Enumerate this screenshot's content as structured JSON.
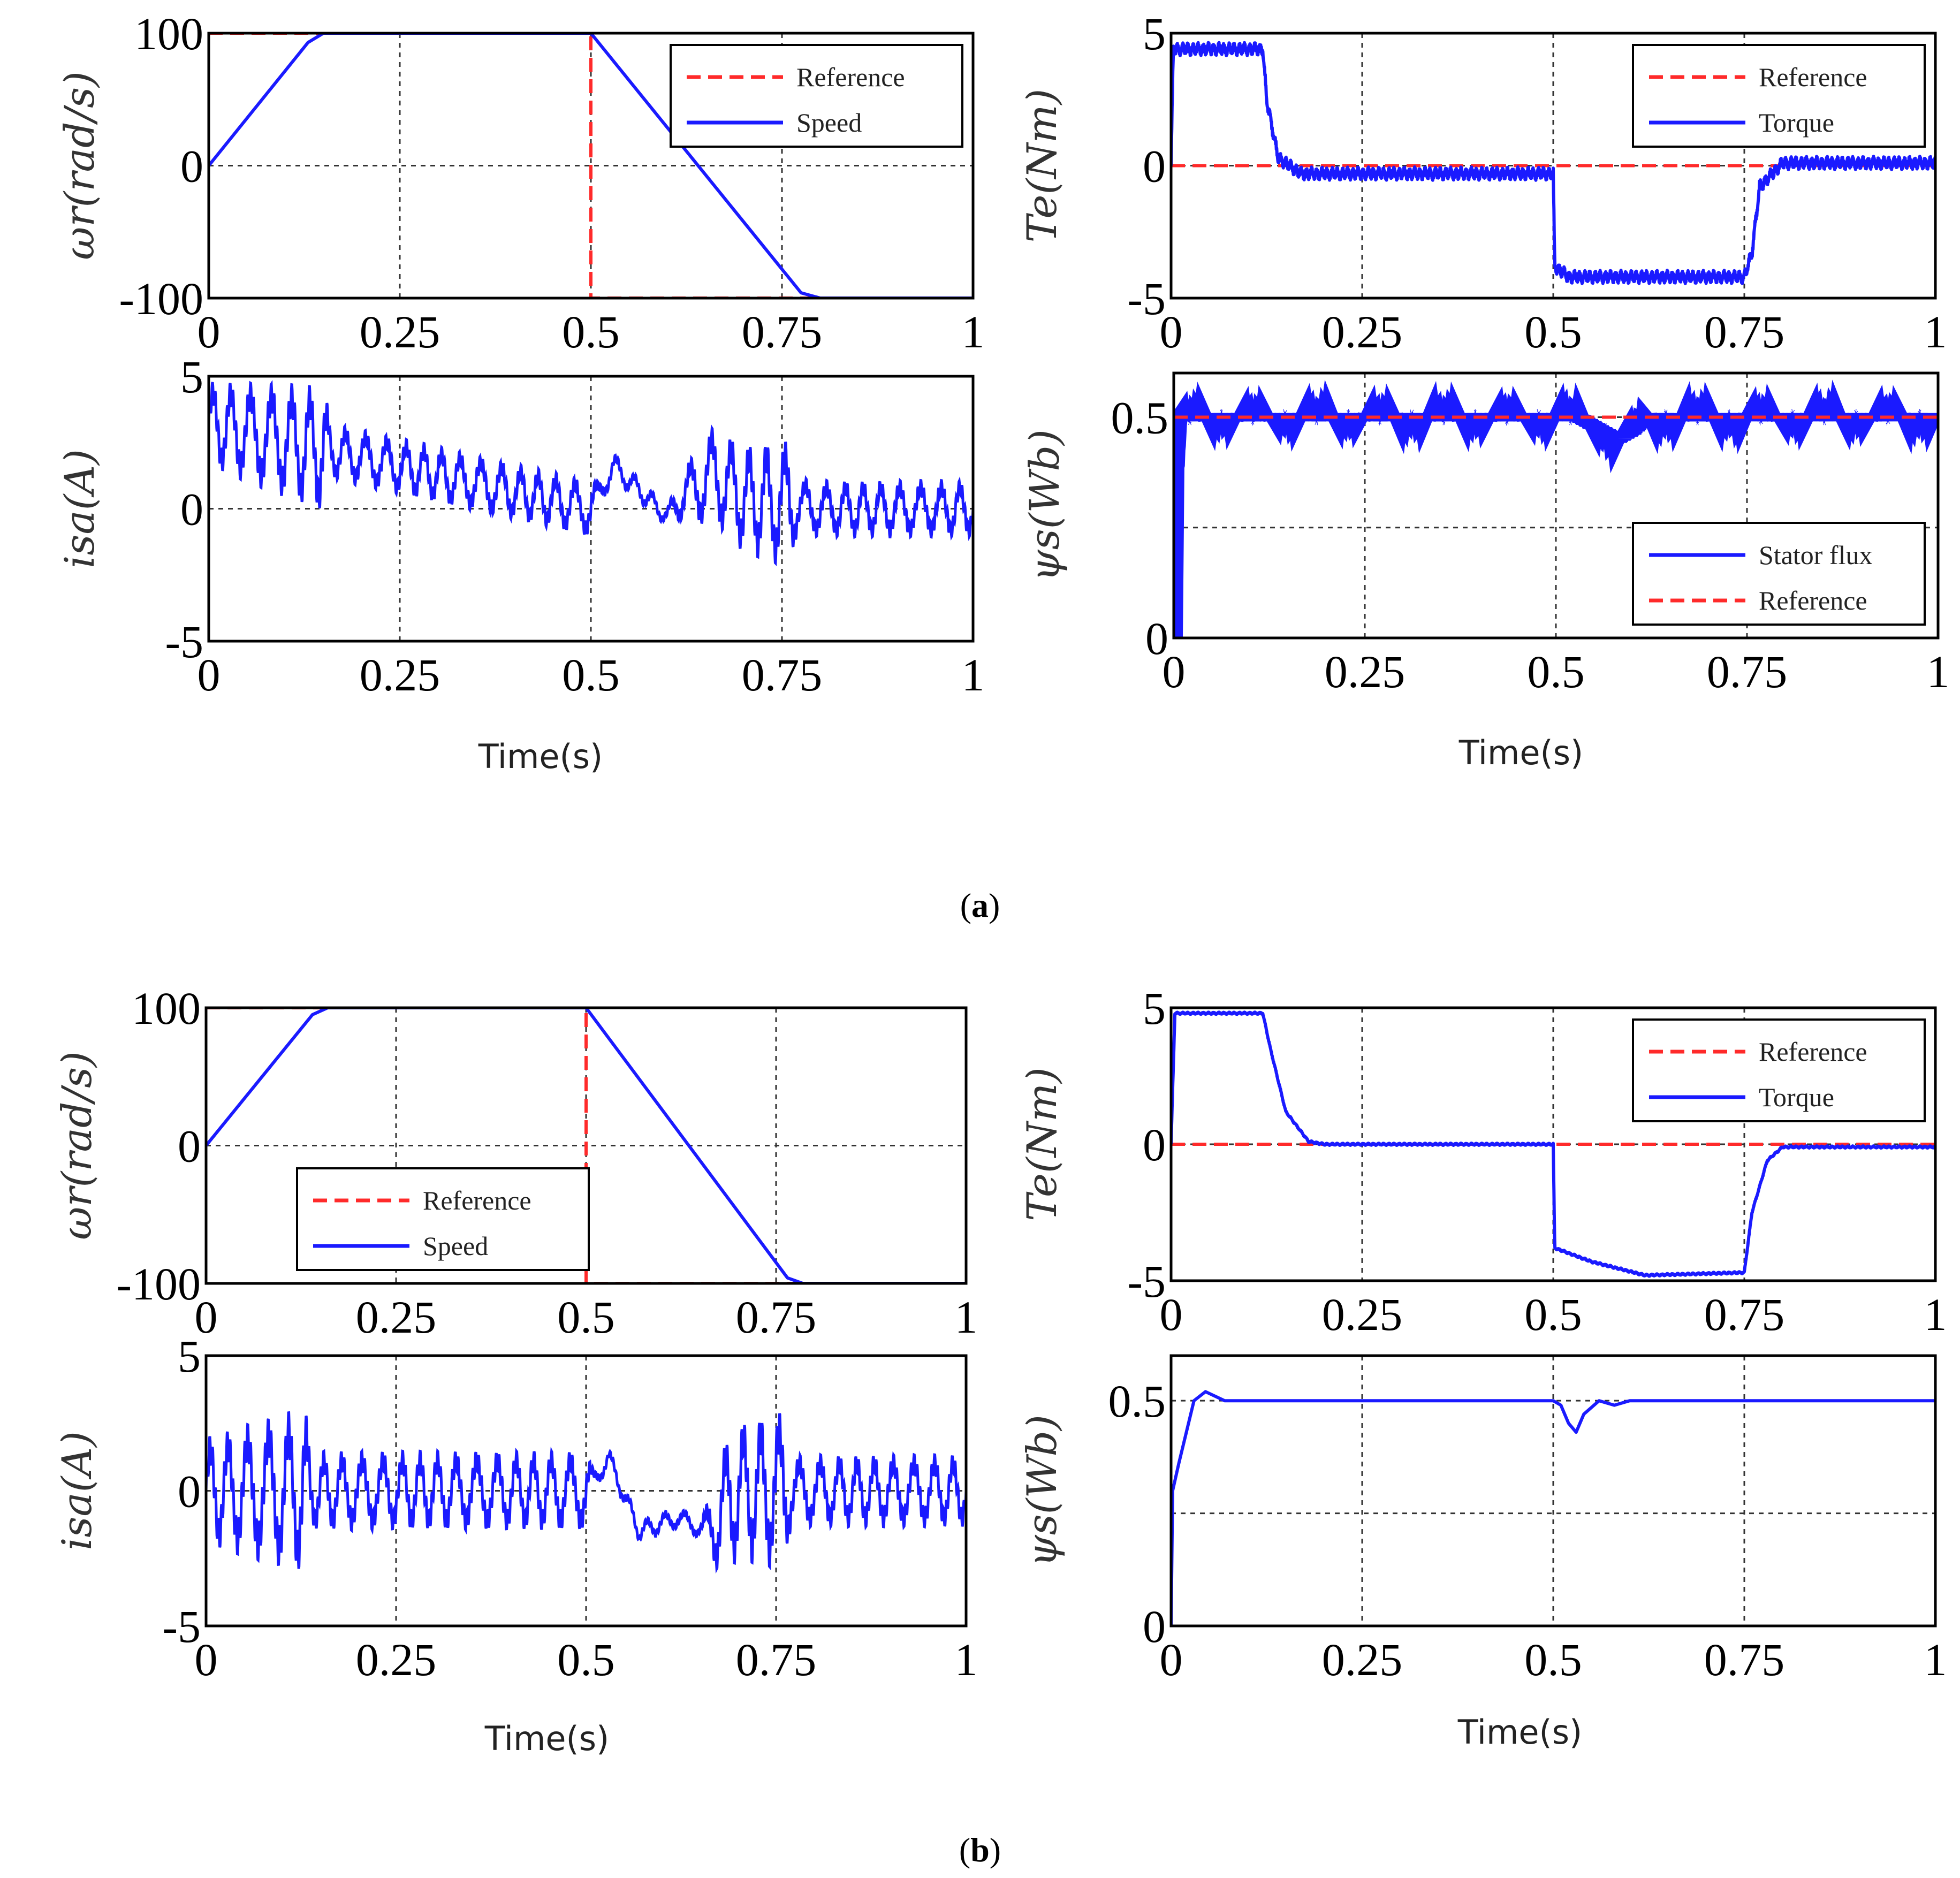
{
  "figure": {
    "x_label": "Time(s)",
    "captions": {
      "a": {
        "open": "(",
        "letter": "a",
        "close": ")"
      },
      "b": {
        "open": "(",
        "letter": "b",
        "close": ")"
      }
    }
  },
  "colors": {
    "reference": "#ff2a2a",
    "signal": "#1a1aff",
    "grid": "#333333",
    "axis": "#000000"
  },
  "chart_data": [
    {
      "id": "a-speed",
      "group": "a",
      "type": "line",
      "ylabel_text": "ωr(rad/s)",
      "xlim": [
        0,
        1
      ],
      "ylim": [
        -100,
        100
      ],
      "xticks": [
        0,
        0.25,
        0.5,
        0.75,
        1
      ],
      "xtick_labels": [
        "0",
        "0.25",
        "0.5",
        "0.75",
        "1"
      ],
      "yticks": [
        -100,
        0,
        100
      ],
      "ytick_labels": [
        "-100",
        "0",
        "100"
      ],
      "legend": {
        "position": "top-right",
        "entries": [
          "Reference",
          "Speed"
        ]
      },
      "series": [
        {
          "name": "Reference",
          "style": "dashed",
          "x": [
            0,
            0.5,
            0.5,
            1
          ],
          "y": [
            100,
            100,
            -100,
            -100
          ]
        },
        {
          "name": "Speed",
          "style": "solid",
          "x": [
            0,
            0.13,
            0.15,
            0.5,
            0.775,
            0.8,
            1
          ],
          "y": [
            0,
            93,
            100,
            100,
            -96,
            -100,
            -100
          ]
        }
      ]
    },
    {
      "id": "a-torque",
      "group": "a",
      "type": "line",
      "ylabel_text": "Te(Nm)",
      "xlim": [
        0,
        1
      ],
      "ylim": [
        -5,
        5
      ],
      "xticks": [
        0,
        0.25,
        0.5,
        0.75,
        1
      ],
      "xtick_labels": [
        "0",
        "0.25",
        "0.5",
        "0.75",
        "1"
      ],
      "yticks": [
        -5,
        0,
        5
      ],
      "ytick_labels": [
        "-5",
        "0",
        "5"
      ],
      "legend": {
        "position": "top-right",
        "entries": [
          "Reference",
          "Torque"
        ]
      },
      "series": [
        {
          "name": "Reference",
          "style": "dashed",
          "x": [
            0,
            1
          ],
          "y": [
            0,
            0
          ]
        },
        {
          "name": "Torque",
          "style": "solid",
          "noise": 0.25,
          "x": [
            0,
            0.003,
            0.12,
            0.125,
            0.14,
            0.17,
            0.5,
            0.502,
            0.52,
            0.75,
            0.76,
            0.77,
            0.8,
            1
          ],
          "y": [
            0,
            4.4,
            4.4,
            2.5,
            0.3,
            -0.3,
            -0.3,
            -3.8,
            -4.2,
            -4.2,
            -3.3,
            -0.8,
            0.1,
            0.1
          ]
        }
      ]
    },
    {
      "id": "a-current",
      "group": "a",
      "type": "line",
      "ylabel_text": "isa(A)",
      "xlim": [
        0,
        1
      ],
      "ylim": [
        -5,
        5
      ],
      "xticks": [
        0,
        0.25,
        0.5,
        0.75,
        1
      ],
      "xtick_labels": [
        "0",
        "0.25",
        "0.5",
        "0.75",
        "1"
      ],
      "yticks": [
        -5,
        0,
        5
      ],
      "ytick_labels": [
        "-5",
        "0",
        "5"
      ],
      "series": [
        {
          "name": "isa",
          "style": "solid",
          "x": [
            0,
            0.5,
            0.53,
            0.6,
            0.62,
            0.66,
            0.7,
            0.8,
            1
          ],
          "y": [
            3.2,
            0,
            1.6,
            -0.3,
            0.5,
            1.3,
            0.4,
            0,
            0
          ],
          "envelope": [
            [
              0,
              1.2
            ],
            [
              0.15,
              1.8
            ],
            [
              0.16,
              0.8
            ],
            [
              0.5,
              0.8
            ],
            [
              0.51,
              0.4
            ],
            [
              0.6,
              0.3
            ],
            [
              0.65,
              1.3
            ],
            [
              0.76,
              1.8
            ],
            [
              0.77,
              0.8
            ],
            [
              1,
              0.8
            ]
          ]
        }
      ]
    },
    {
      "id": "a-flux",
      "group": "a",
      "type": "line",
      "ylabel_text": "ψs(Wb)",
      "xlim": [
        0,
        1
      ],
      "ylim": [
        0,
        0.6
      ],
      "xticks": [
        0,
        0.25,
        0.5,
        0.75,
        1
      ],
      "xtick_labels": [
        "0",
        "0.25",
        "0.5",
        "0.75",
        "1"
      ],
      "yticks": [
        0,
        0.5
      ],
      "ytick_labels": [
        "0",
        "0.5"
      ],
      "ygrid": [
        0.25
      ],
      "legend": {
        "position": "lower-right",
        "entries": [
          "Stator flux",
          "Reference"
        ]
      },
      "series": [
        {
          "name": "Stator flux",
          "style": "band",
          "x": [
            0,
            0.002,
            0.006,
            0.53,
            0.56,
            0.58,
            0.6,
            0.62,
            1
          ],
          "y": [
            0,
            0.38,
            0.5,
            0.5,
            0.47,
            0.45,
            0.47,
            0.5,
            0.5
          ]
        },
        {
          "name": "Reference",
          "style": "dashed",
          "x": [
            0,
            1
          ],
          "y": [
            0.5,
            0.5
          ]
        }
      ]
    },
    {
      "id": "b-speed",
      "group": "b",
      "type": "line",
      "ylabel_text": "ωr(rad/s)",
      "xlim": [
        0,
        1
      ],
      "ylim": [
        -100,
        100
      ],
      "xticks": [
        0,
        0.25,
        0.5,
        0.75,
        1
      ],
      "xtick_labels": [
        "0",
        "0.25",
        "0.5",
        "0.75",
        "1"
      ],
      "yticks": [
        -100,
        0,
        100
      ],
      "ytick_labels": [
        "-100",
        "0",
        "100"
      ],
      "legend": {
        "position": "lower-left",
        "entries": [
          "Reference",
          "Speed"
        ]
      },
      "series": [
        {
          "name": "Reference",
          "style": "dashed",
          "x": [
            0,
            0.5,
            0.5,
            0.78
          ],
          "y": [
            100,
            100,
            -100,
            -100
          ]
        },
        {
          "name": "Speed",
          "style": "solid",
          "x": [
            0,
            0.14,
            0.16,
            0.5,
            0.765,
            0.785,
            1
          ],
          "y": [
            0,
            95,
            100,
            100,
            -96,
            -100,
            -100
          ]
        }
      ]
    },
    {
      "id": "b-torque",
      "group": "b",
      "type": "line",
      "ylabel_text": "Te(Nm)",
      "xlim": [
        0,
        1
      ],
      "ylim": [
        -5,
        5
      ],
      "xticks": [
        0,
        0.25,
        0.5,
        0.75,
        1
      ],
      "xtick_labels": [
        "0",
        "0.25",
        "0.5",
        "0.75",
        "1"
      ],
      "yticks": [
        -5,
        0,
        5
      ],
      "ytick_labels": [
        "-5",
        "0",
        "5"
      ],
      "legend": {
        "position": "top-right",
        "entries": [
          "Reference",
          "Torque"
        ]
      },
      "series": [
        {
          "name": "Reference",
          "style": "dashed",
          "x": [
            0,
            1
          ],
          "y": [
            0,
            0
          ]
        },
        {
          "name": "Torque",
          "style": "solid",
          "noise": 0.04,
          "x": [
            0,
            0.005,
            0.12,
            0.13,
            0.15,
            0.18,
            0.2,
            0.5,
            0.502,
            0.55,
            0.62,
            0.75,
            0.76,
            0.78,
            0.8,
            1
          ],
          "y": [
            0,
            4.8,
            4.8,
            3.5,
            1.2,
            0.1,
            0,
            0,
            -3.8,
            -4.3,
            -4.8,
            -4.7,
            -2.5,
            -0.6,
            -0.1,
            -0.1
          ]
        }
      ]
    },
    {
      "id": "b-current",
      "group": "b",
      "type": "line",
      "ylabel_text": "isa(A)",
      "xlim": [
        0,
        1
      ],
      "ylim": [
        -5,
        5
      ],
      "xticks": [
        0,
        0.25,
        0.5,
        0.75,
        1
      ],
      "xtick_labels": [
        "0",
        "0.25",
        "0.5",
        "0.75",
        "1"
      ],
      "yticks": [
        -5,
        0,
        5
      ],
      "ytick_labels": [
        "-5",
        "0",
        "5"
      ],
      "series": [
        {
          "name": "isa",
          "style": "solid",
          "x": [
            0,
            0.5,
            0.53,
            0.57,
            0.62,
            0.66,
            0.7,
            1
          ],
          "y": [
            0,
            0,
            1.2,
            -1.5,
            -1.0,
            -1.5,
            0,
            0
          ],
          "envelope": [
            [
              0,
              1.5
            ],
            [
              0.13,
              2.3
            ],
            [
              0.14,
              1.1
            ],
            [
              0.5,
              1.1
            ],
            [
              0.51,
              0.3
            ],
            [
              0.65,
              0.3
            ],
            [
              0.68,
              1.8
            ],
            [
              0.76,
              2.2
            ],
            [
              0.77,
              1.0
            ],
            [
              1,
              1.0
            ]
          ]
        }
      ]
    },
    {
      "id": "b-flux",
      "group": "b",
      "type": "line",
      "ylabel_text": "ψs(Wb)",
      "xlim": [
        0,
        1
      ],
      "ylim": [
        0,
        0.6
      ],
      "xticks": [
        0,
        0.25,
        0.5,
        0.75,
        1
      ],
      "xtick_labels": [
        "0",
        "0.25",
        "0.5",
        "0.75",
        "1"
      ],
      "yticks": [
        0,
        0.5
      ],
      "ytick_labels": [
        "0",
        "0.5"
      ],
      "ygrid": [
        0.25
      ],
      "series": [
        {
          "name": "Stator flux",
          "style": "solid",
          "x": [
            0,
            0.002,
            0.01,
            0.03,
            0.045,
            0.07,
            0.5,
            0.51,
            0.52,
            0.53,
            0.54,
            0.56,
            0.58,
            0.6,
            0.62,
            1
          ],
          "y": [
            0,
            0.3,
            0.36,
            0.5,
            0.52,
            0.5,
            0.5,
            0.49,
            0.45,
            0.43,
            0.47,
            0.5,
            0.49,
            0.5,
            0.5,
            0.5
          ]
        }
      ]
    }
  ]
}
